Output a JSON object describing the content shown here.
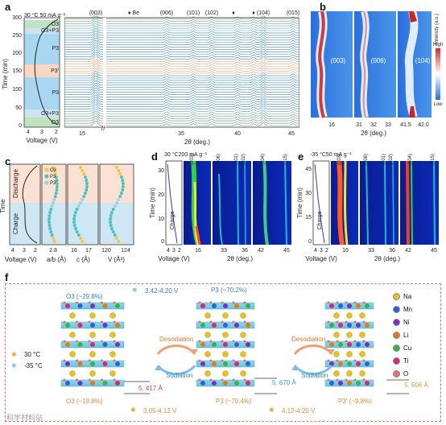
{
  "panel_labels": {
    "a": "a",
    "b": "b",
    "c": "c",
    "d": "d",
    "e": "e",
    "f": "f"
  },
  "panel_a": {
    "condition": "30 °C 50 mA g⁻¹",
    "time_axis_label": "Time (min)",
    "time_ticks": [
      "0",
      "50",
      "100",
      "150",
      "200",
      "250",
      "300"
    ],
    "voltage_axis_label": "Voltage (V)",
    "voltage_ticks": [
      "4",
      "3",
      "2"
    ],
    "phase_labels": [
      "O3",
      "O3+P3",
      "P3",
      "P3'",
      "P3",
      "O3+P3",
      "O3"
    ],
    "theta_label": "2θ (deg.)",
    "theta_ticks": [
      "15",
      "35",
      "40",
      "45"
    ],
    "peaks": [
      "(003)",
      "(006)",
      "(101)",
      "(102)",
      "(104)",
      "(015)"
    ],
    "be_marker": "♦ Be"
  },
  "panel_b": {
    "theta_label": "2θ (deg.)",
    "theta_ticks": [
      "16",
      "31",
      "32",
      "33",
      "41.5",
      "42.0"
    ],
    "peaks": [
      "(003)",
      "(006)",
      "(104)"
    ],
    "intensity_label": "Intensity (a.u.)",
    "intensity_high": "High",
    "intensity_low": "Low"
  },
  "panel_c": {
    "axis_time": "Time",
    "discharge": "Discharge",
    "charge": "Charge",
    "legend": [
      "O3",
      "P3",
      "P3'"
    ],
    "x_labels": [
      "Voltage (V)",
      "a/b (Å)",
      "c (Å)",
      "V (Å³)"
    ],
    "ticks_voltage": [
      "4",
      "3",
      "2"
    ],
    "ticks_ab": [
      "2.8"
    ],
    "ticks_c": [
      "16",
      "17"
    ],
    "ticks_v": [
      "120",
      "124"
    ]
  },
  "panel_d": {
    "condition": "30 °C200 mA g⁻¹",
    "time_label": "Time (min)",
    "time_ticks": [
      "0",
      "10",
      "20",
      "30"
    ],
    "direction": "Charge",
    "voltage_label": "Voltage (V)",
    "voltage_ticks": [
      "4",
      "3",
      "2"
    ],
    "theta_label": "2θ (deg.)",
    "theta_ticks": [
      "16",
      "33",
      "36",
      "42",
      "45"
    ],
    "peaks": [
      "(003)",
      "(006)",
      "(101)",
      "(102)",
      "(104)",
      "(015)"
    ]
  },
  "panel_e": {
    "condition": "-35 °C50 mA g⁻¹",
    "time_label": "Time (min)",
    "time_ticks": [
      "0",
      "15",
      "30",
      "45"
    ],
    "direction": "Charge",
    "voltage_label": "Voltage (V)",
    "voltage_ticks": [
      "4",
      "3",
      "2"
    ],
    "theta_label": "2θ (deg.)",
    "theta_ticks": [
      "16",
      "33",
      "36",
      "42",
      "45"
    ],
    "peaks": [
      "(003)",
      "(006)",
      "(101)",
      "(102)",
      "(104)",
      "(015)"
    ]
  },
  "panel_f": {
    "top_left": "O3 (~29.8%)",
    "top_mid_range": "3.42-4.20 V",
    "top_mid": "P3 (~70.2%)",
    "bottom_left": "O3 (~19.8%)",
    "bottom_range1": "3.05-4.12 V",
    "bottom_mid": "P3 (~70.4%)",
    "bottom_range2": "4.12-4.20 V",
    "bottom_right": "P3' (~9.8%)",
    "desodiation": "Desodiation",
    "sodiation": "Sodiation",
    "temp_hot": "30 °C",
    "temp_cold": "-35 °C",
    "d_o3": "5. 417 Å",
    "d_p3": "5. 670 Å",
    "d_p3p": "5. 606 Å",
    "legend": [
      {
        "name": "Na",
        "color": "#e6c02a"
      },
      {
        "name": "Mn",
        "color": "#2b64d8"
      },
      {
        "name": "Ni",
        "color": "#7b2fbf"
      },
      {
        "name": "Li",
        "color": "#e07a1a"
      },
      {
        "name": "Cu",
        "color": "#38b24a"
      },
      {
        "name": "Ti",
        "color": "#d6287a"
      },
      {
        "name": "O",
        "color": "#e2736a"
      }
    ]
  },
  "watermark": "科学材料站"
}
